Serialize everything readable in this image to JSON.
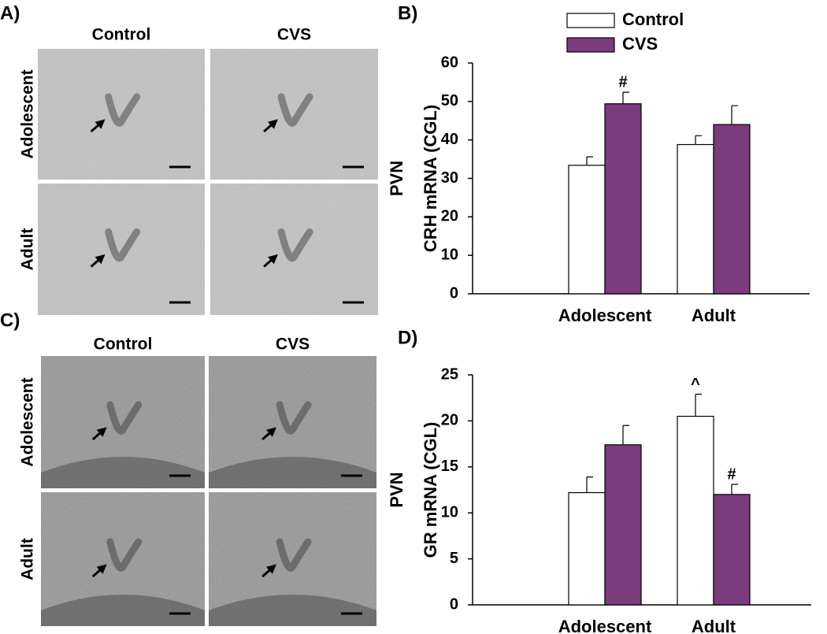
{
  "image_panels": [
    {
      "label": "A)",
      "columns": [
        "Control",
        "CVS"
      ],
      "rows": [
        "Adolescent",
        "Adult"
      ]
    },
    {
      "label": "C)",
      "columns": [
        "Control",
        "CVS"
      ],
      "rows": [
        "Adolescent",
        "Adult"
      ]
    }
  ],
  "chart_data": [
    {
      "type": "bar",
      "panel_label": "B)",
      "ylabel": [
        "PVN",
        "CRH mRNA (CGL)"
      ],
      "categories": [
        "Adolescent",
        "Adult"
      ],
      "series": [
        {
          "name": "Control",
          "color": "#ffffff",
          "values": [
            33.4,
            38.8
          ],
          "errors": [
            2.2,
            2.3
          ],
          "annotations": [
            null,
            null
          ]
        },
        {
          "name": "CVS",
          "color": "#7b3b7c",
          "values": [
            49.4,
            44.0
          ],
          "errors": [
            3.0,
            4.9
          ],
          "annotations": [
            "#",
            null
          ]
        }
      ],
      "edgecolor": "#000000",
      "ylim": [
        0,
        60
      ],
      "yticks": [
        0,
        10,
        20,
        30,
        40,
        50,
        60
      ],
      "legend": "top"
    },
    {
      "type": "bar",
      "panel_label": "D)",
      "ylabel": [
        "PVN",
        "GR mRNA (CGL)"
      ],
      "categories": [
        "Adolescent",
        "Adult"
      ],
      "series": [
        {
          "color": "#ffffff",
          "values": [
            12.2,
            20.5
          ],
          "errors": [
            1.7,
            2.4
          ],
          "annotations": [
            null,
            "^"
          ]
        },
        {
          "color": "#7b3b7c",
          "values": [
            17.4,
            12.0
          ],
          "errors": [
            2.1,
            1.1
          ],
          "annotations": [
            null,
            "#"
          ]
        }
      ],
      "edgecolor": "#000000",
      "ylim": [
        0,
        25
      ],
      "yticks": [
        0,
        5,
        10,
        15,
        20,
        25
      ]
    }
  ]
}
